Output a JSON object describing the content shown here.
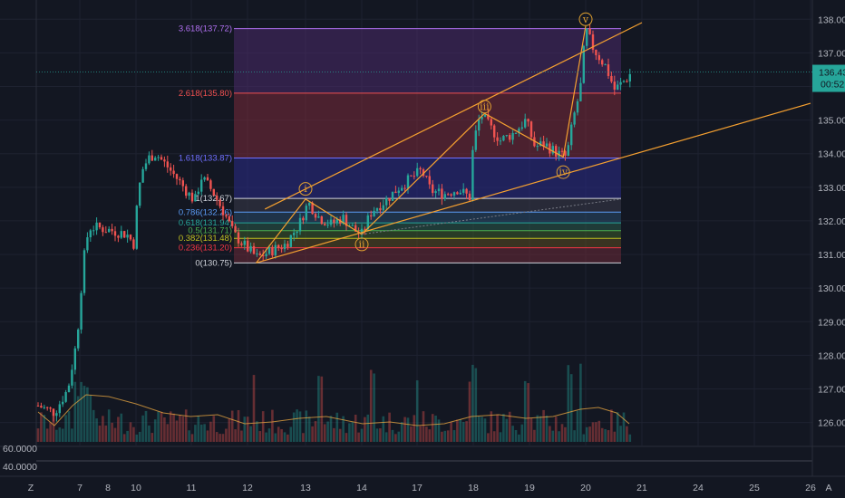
{
  "chart_data": {
    "type": "candlestick",
    "x_axis": {
      "ticks": [
        "7",
        "8",
        "10",
        "11",
        "12",
        "13",
        "14",
        "17",
        "18",
        "19",
        "20",
        "21",
        "24",
        "25",
        "26"
      ],
      "corner_left": "Z",
      "corner_right": "A"
    },
    "y_axis": {
      "ticks": [
        "126.00",
        "127.00",
        "128.00",
        "129.00",
        "130.00",
        "131.00",
        "132.00",
        "133.00",
        "134.00",
        "135.00",
        "136.00",
        "137.00",
        "138.00"
      ],
      "ylim": [
        125.8,
        138.25
      ]
    },
    "last_price": {
      "value": 136.43,
      "label": "136.43",
      "countdown": "00:52"
    },
    "fib_levels": [
      {
        "ratio": 0,
        "price": 130.75,
        "label": "0(130.75)",
        "color": "#d1d4dc"
      },
      {
        "ratio": 0.236,
        "price": 131.2,
        "label": "0.236(131.20)",
        "color": "#f23645"
      },
      {
        "ratio": 0.382,
        "price": 131.48,
        "label": "0.382(131.48)",
        "color": "#c0c020"
      },
      {
        "ratio": 0.5,
        "price": 131.71,
        "label": "0.5(131.71)",
        "color": "#4caf50"
      },
      {
        "ratio": 0.618,
        "price": 131.94,
        "label": "0.618(131.94)",
        "color": "#26a69a"
      },
      {
        "ratio": 0.786,
        "price": 132.26,
        "label": "0.786(132.26)",
        "color": "#5b9cf6"
      },
      {
        "ratio": 1,
        "price": 132.67,
        "label": "1(132.67)",
        "color": "#d1d4dc"
      },
      {
        "ratio": 1.618,
        "price": 133.87,
        "label": "1.618(133.87)",
        "color": "#6f6fff"
      },
      {
        "ratio": 2.618,
        "price": 135.8,
        "label": "2.618(135.80)",
        "color": "#f05050"
      },
      {
        "ratio": 3.618,
        "price": 137.72,
        "label": "3.618(137.72)",
        "color": "#b070f0"
      }
    ],
    "wave_labels": [
      {
        "label": "i",
        "price": 132.95,
        "time": 13.0
      },
      {
        "label": "ii",
        "price": 131.3,
        "time": 14.0
      },
      {
        "label": "iii",
        "price": 135.4,
        "time": 18.2
      },
      {
        "label": "iv",
        "price": 133.45,
        "time": 19.6
      },
      {
        "label": "v",
        "price": 138.0,
        "time": 20.0
      }
    ],
    "wave_path": [
      {
        "time": 12.15,
        "price": 130.75
      },
      {
        "time": 13.0,
        "price": 132.65
      },
      {
        "time": 14.0,
        "price": 131.6
      },
      {
        "time": 18.2,
        "price": 135.2
      },
      {
        "time": 19.6,
        "price": 133.9
      },
      {
        "time": 20.0,
        "price": 137.8
      }
    ],
    "trendlines": [
      {
        "from": {
          "time": 12.3,
          "price": 132.35
        },
        "to": {
          "time": 21.0,
          "price": 137.9
        }
      },
      {
        "from": {
          "time": 12.15,
          "price": 130.75
        },
        "to": {
          "time": 26.0,
          "price": 135.5
        }
      }
    ],
    "oscillator": {
      "ticks": [
        "60.0000",
        "40.0000"
      ]
    },
    "colors": {
      "up": "#26a69a",
      "down": "#ef5350",
      "wave": "#f5a030",
      "volume_ma": "#e0a040"
    }
  }
}
